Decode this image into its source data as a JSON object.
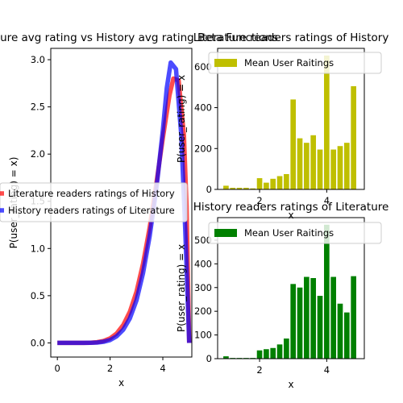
{
  "chart_data": [
    {
      "type": "line",
      "title": "Literature avg rating vs History avg rating Beta Functions",
      "xlabel": "x",
      "ylabel": "P(user_rating) = x)",
      "xlim": [
        -0.25,
        5.1
      ],
      "ylim": [
        -0.15,
        3.12
      ],
      "xticks": [
        0,
        2,
        4
      ],
      "yticks": [
        0.0,
        0.5,
        1.0,
        1.5,
        2.0,
        2.5,
        3.0
      ],
      "legend_position": "center-left",
      "series": [
        {
          "name": "Literature readers ratings of History",
          "color": "#ff0000",
          "x": [
            0,
            0.25,
            0.5,
            0.75,
            1.0,
            1.25,
            1.5,
            1.75,
            2.0,
            2.25,
            2.5,
            2.75,
            3.0,
            3.25,
            3.5,
            3.75,
            4.0,
            4.25,
            4.4,
            4.6,
            4.8,
            4.9,
            5.0
          ],
          "values": [
            0,
            0.0,
            0.0,
            0.0,
            0.0,
            0.002,
            0.007,
            0.02,
            0.048,
            0.1,
            0.19,
            0.33,
            0.54,
            0.84,
            1.22,
            1.68,
            2.17,
            2.62,
            2.8,
            2.78,
            2.2,
            1.45,
            0
          ]
        },
        {
          "name": "History readers ratings of Literature",
          "color": "#0000ff",
          "x": [
            0,
            0.25,
            0.5,
            0.75,
            1.0,
            1.25,
            1.5,
            1.75,
            2.0,
            2.25,
            2.5,
            2.75,
            3.0,
            3.25,
            3.5,
            3.75,
            4.0,
            4.15,
            4.3,
            4.5,
            4.7,
            4.85,
            5.0
          ],
          "values": [
            0,
            0.0,
            0.0,
            0.0,
            0.0,
            0.001,
            0.004,
            0.012,
            0.03,
            0.07,
            0.14,
            0.26,
            0.45,
            0.74,
            1.13,
            1.62,
            2.25,
            2.7,
            2.97,
            2.9,
            2.2,
            1.2,
            0
          ]
        }
      ]
    },
    {
      "type": "bar",
      "title": "Literature readers ratings of History",
      "xlabel": "x",
      "ylabel": "P(user_rating) = x",
      "xlim": [
        0.75,
        5.12
      ],
      "ylim": [
        0,
        690
      ],
      "xticks": [
        2,
        4
      ],
      "yticks": [
        0,
        200,
        400,
        600
      ],
      "legend_position": "upper-left",
      "series": [
        {
          "name": "Mean User Raitings",
          "color": "#bfbf00",
          "x": [
            1.0,
            1.2,
            1.4,
            1.6,
            1.8,
            2.0,
            2.2,
            2.4,
            2.6,
            2.8,
            3.0,
            3.2,
            3.4,
            3.6,
            3.8,
            4.0,
            4.2,
            4.4,
            4.6,
            4.8
          ],
          "values": [
            18,
            8,
            8,
            8,
            5,
            55,
            33,
            52,
            65,
            75,
            440,
            250,
            228,
            265,
            195,
            655,
            195,
            212,
            228,
            505
          ]
        }
      ]
    },
    {
      "type": "bar",
      "title": "History readers ratings of Literature",
      "xlabel": "x",
      "ylabel": "P(user_rating) = x",
      "xlim": [
        0.75,
        5.12
      ],
      "ylim": [
        0,
        595
      ],
      "xticks": [
        2,
        4
      ],
      "yticks": [
        0,
        100,
        200,
        300,
        400,
        500
      ],
      "legend_position": "upper-left",
      "series": [
        {
          "name": "Mean User Raitings",
          "color": "#008000",
          "x": [
            1.0,
            1.2,
            1.4,
            1.6,
            1.8,
            2.0,
            2.2,
            2.4,
            2.6,
            2.8,
            3.0,
            3.2,
            3.4,
            3.6,
            3.8,
            4.0,
            4.2,
            4.4,
            4.6,
            4.8
          ],
          "values": [
            10,
            3,
            3,
            3,
            3,
            35,
            40,
            45,
            60,
            85,
            315,
            300,
            345,
            340,
            265,
            565,
            345,
            232,
            195,
            348
          ]
        }
      ]
    }
  ]
}
